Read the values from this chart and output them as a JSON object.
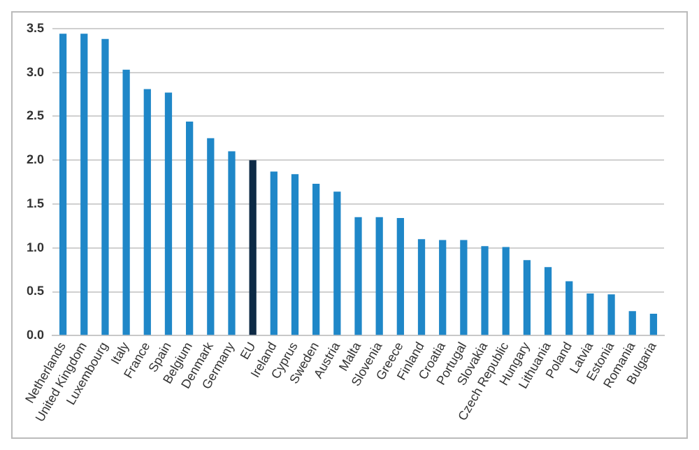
{
  "chart_data": {
    "type": "bar",
    "categories": [
      "Netherlands",
      "United Kingdom",
      "Luxembourg",
      "Italy",
      "France",
      "Spain",
      "Belgium",
      "Denmark",
      "Germany",
      "EU",
      "Ireland",
      "Cyprus",
      "Sweden",
      "Austria",
      "Malta",
      "Slovenia",
      "Greece",
      "Finland",
      "Croatia",
      "Portugal",
      "Slovakia",
      "Czech Republic",
      "Hungary",
      "Lithuania",
      "Poland",
      "Latvia",
      "Estonia",
      "Romania",
      "Bulgaria"
    ],
    "values": [
      3.44,
      3.44,
      3.38,
      3.03,
      2.81,
      2.77,
      2.44,
      2.25,
      2.1,
      2.0,
      1.87,
      1.84,
      1.73,
      1.64,
      1.35,
      1.35,
      1.34,
      1.1,
      1.09,
      1.09,
      1.02,
      1.01,
      0.86,
      0.78,
      0.62,
      0.48,
      0.47,
      0.28,
      0.25
    ],
    "colors": [
      "#1f87c8",
      "#1f87c8",
      "#1f87c8",
      "#1f87c8",
      "#1f87c8",
      "#1f87c8",
      "#1f87c8",
      "#1f87c8",
      "#1f87c8",
      "#0d2a45",
      "#1f87c8",
      "#1f87c8",
      "#1f87c8",
      "#1f87c8",
      "#1f87c8",
      "#1f87c8",
      "#1f87c8",
      "#1f87c8",
      "#1f87c8",
      "#1f87c8",
      "#1f87c8",
      "#1f87c8",
      "#1f87c8",
      "#1f87c8",
      "#1f87c8",
      "#1f87c8",
      "#1f87c8",
      "#1f87c8",
      "#1f87c8"
    ],
    "ylim": [
      0,
      3.5
    ],
    "yticks": [
      {
        "value": 0,
        "label": "0.0"
      },
      {
        "value": 0.5,
        "label": "0.5"
      },
      {
        "value": 1,
        "label": "1.0"
      },
      {
        "value": 1.5,
        "label": "1.5"
      },
      {
        "value": 2,
        "label": "2.0"
      },
      {
        "value": 2.5,
        "label": "2.5"
      },
      {
        "value": 3,
        "label": "3.0"
      },
      {
        "value": 3.5,
        "label": "3.5"
      }
    ],
    "grid": "y",
    "legend": false
  }
}
